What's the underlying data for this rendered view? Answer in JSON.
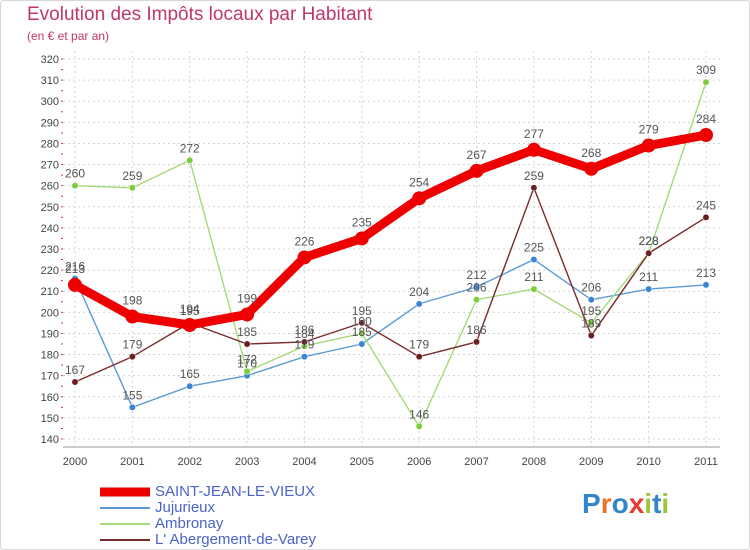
{
  "title": "Evolution des Impôts locaux par Habitant",
  "subtitle": "(en € et par an)",
  "brand": {
    "letters": [
      "P",
      "r",
      "o",
      "x",
      "i",
      "t",
      "i"
    ],
    "colors": [
      "#2f86c8",
      "#e8752b",
      "#2f86c8",
      "#e83b2b",
      "#9ec43a",
      "#2f86c8",
      "#9ec43a"
    ]
  },
  "chart_data": {
    "type": "line",
    "title": "Evolution des Impôts locaux par Habitant",
    "subtitle": "(en € et par an)",
    "x": [
      "2000",
      "2001",
      "2002",
      "2003",
      "2004",
      "2005",
      "2006",
      "2007",
      "2008",
      "2009",
      "2010",
      "2011"
    ],
    "ylim": [
      140,
      320
    ],
    "yticks": [
      140,
      150,
      160,
      170,
      180,
      190,
      200,
      210,
      220,
      230,
      240,
      250,
      260,
      270,
      280,
      290,
      300,
      310,
      320
    ],
    "grid": true,
    "legend_position": "bottom-left",
    "series": [
      {
        "name": "SAINT-JEAN-LE-VIEUX",
        "color": "#ee0000",
        "marker": "#ee0000",
        "values": [
          213,
          198,
          194,
          199,
          226,
          235,
          254,
          267,
          277,
          268,
          279,
          284
        ],
        "labels": [
          "213",
          "198",
          "194",
          "199",
          "226",
          "235",
          "254",
          "267",
          "277",
          "268",
          "279",
          "284"
        ]
      },
      {
        "name": "Jujurieux",
        "color": "#5b9ad5",
        "marker": "#3a86d3",
        "values": [
          216,
          155,
          165,
          170,
          179,
          185,
          204,
          212,
          225,
          206,
          211,
          213
        ],
        "labels": [
          "216",
          "155",
          "165",
          "170",
          "179",
          "185",
          "204",
          "212",
          "225",
          "206",
          "211",
          "213"
        ]
      },
      {
        "name": "Ambronay",
        "color": "#a6d97a",
        "marker": "#7ccc3c",
        "values": [
          260,
          259,
          272,
          172,
          184,
          190,
          146,
          206,
          211,
          195,
          228,
          309
        ],
        "labels": [
          "260",
          "259",
          "272",
          "172",
          "184",
          "190",
          "146",
          "206",
          "211",
          "195",
          "228",
          "309"
        ]
      },
      {
        "name": "L' Abergement-de-Varey",
        "color": "#7a2a2a",
        "marker": "#6b1f1f",
        "values": [
          167,
          179,
          195,
          185,
          186,
          195,
          179,
          186,
          259,
          189,
          228,
          245
        ],
        "labels": [
          "167",
          "179",
          "195",
          "185",
          "186",
          "195",
          "179",
          "186",
          "259",
          "189",
          "228",
          "245"
        ]
      }
    ]
  }
}
